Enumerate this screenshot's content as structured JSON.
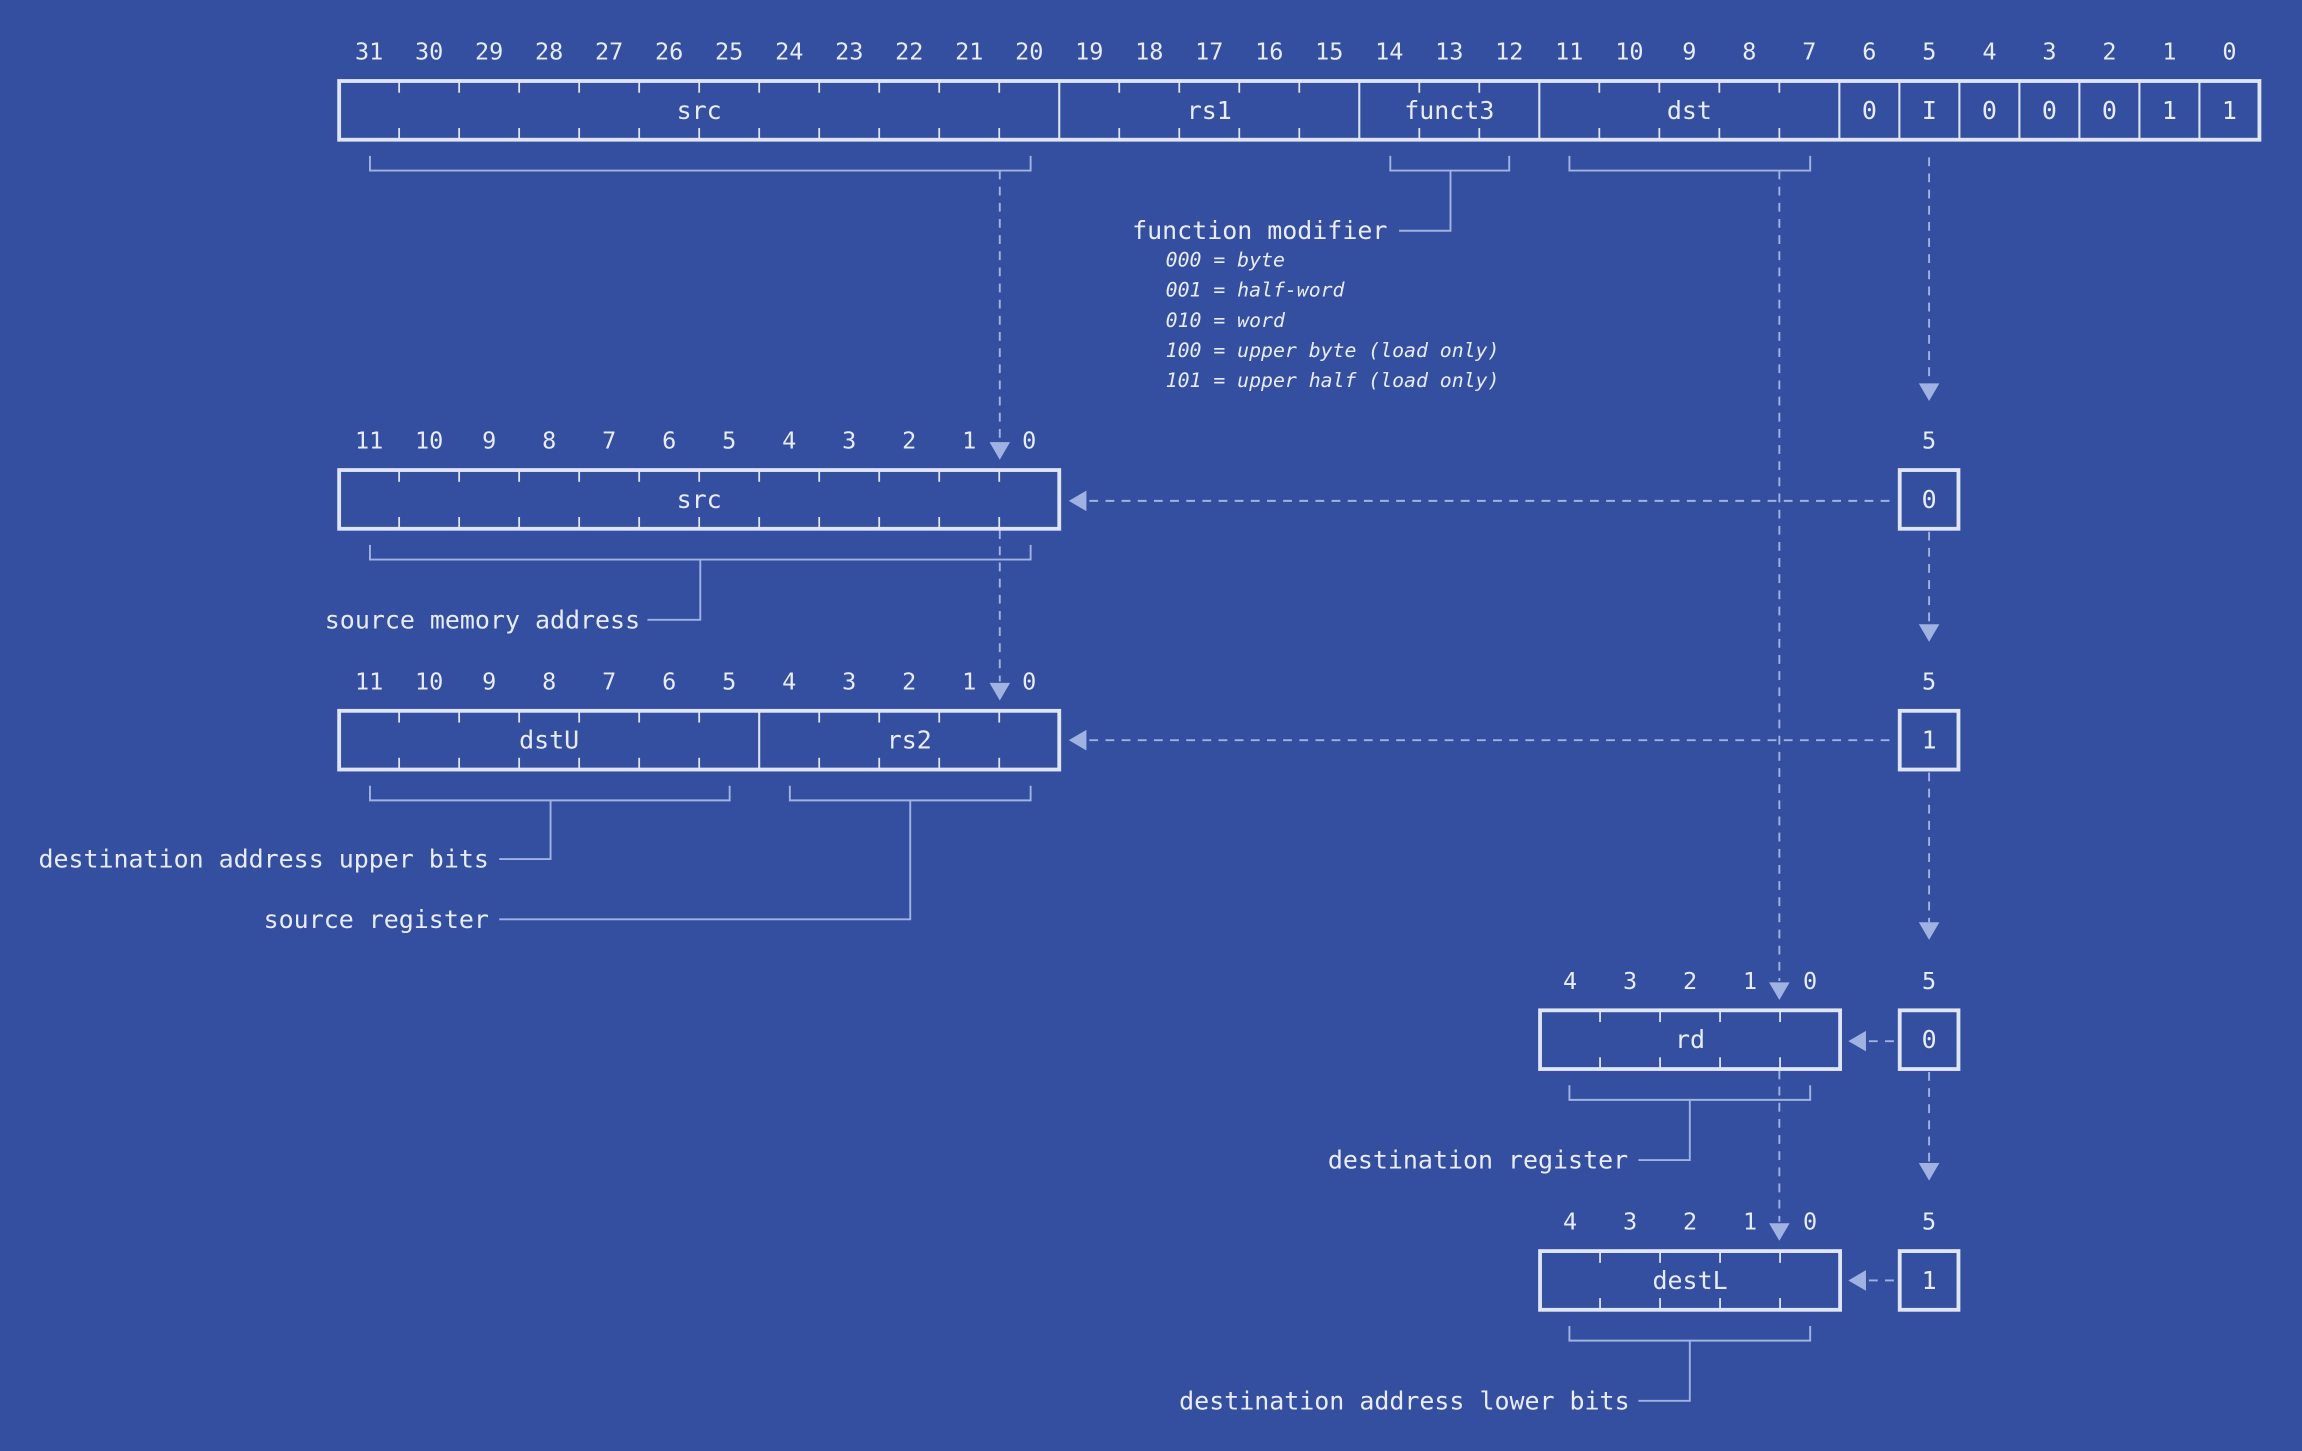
{
  "colors": {
    "background": "#344fa0",
    "box_stroke": "#dfe5f7",
    "connector": "#9fb2e2",
    "text": "#e8ecf8"
  },
  "instruction": {
    "bit_labels": [
      "31",
      "30",
      "29",
      "28",
      "27",
      "26",
      "25",
      "24",
      "23",
      "22",
      "21",
      "20",
      "19",
      "18",
      "17",
      "16",
      "15",
      "14",
      "13",
      "12",
      "11",
      "10",
      "9",
      "8",
      "7",
      "6",
      "5",
      "4",
      "3",
      "2",
      "1",
      "0"
    ],
    "fields": [
      "src",
      "rs1",
      "funct3",
      "dst",
      "0",
      "I",
      "0",
      "0",
      "0",
      "1",
      "1"
    ]
  },
  "function_modifier": {
    "label": "function modifier",
    "options": [
      "000 = byte",
      "001 = half-word",
      "010 = word",
      "100 = upper byte (load only)",
      "101 = upper half (load only)"
    ]
  },
  "stage1": {
    "bit_labels": [
      "11",
      "10",
      "9",
      "8",
      "7",
      "6",
      "5",
      "4",
      "3",
      "2",
      "1",
      "0"
    ],
    "fields": [
      "src"
    ],
    "flag_bit": "5",
    "flag_value": "0",
    "annotations": [
      "source memory address"
    ]
  },
  "stage2": {
    "bit_labels": [
      "11",
      "10",
      "9",
      "8",
      "7",
      "6",
      "5",
      "4",
      "3",
      "2",
      "1",
      "0"
    ],
    "fields": [
      "dstU",
      "rs2"
    ],
    "flag_bit": "5",
    "flag_value": "1",
    "annotations": [
      "destination address upper bits",
      "source register"
    ]
  },
  "stage3": {
    "bit_labels": [
      "4",
      "3",
      "2",
      "1",
      "0"
    ],
    "fields": [
      "rd"
    ],
    "flag_bit": "5",
    "flag_value": "0",
    "annotations": [
      "destination register"
    ]
  },
  "stage4": {
    "bit_labels": [
      "4",
      "3",
      "2",
      "1",
      "0"
    ],
    "fields": [
      "destL"
    ],
    "flag_bit": "5",
    "flag_value": "1",
    "annotations": [
      "destination address lower bits"
    ]
  }
}
